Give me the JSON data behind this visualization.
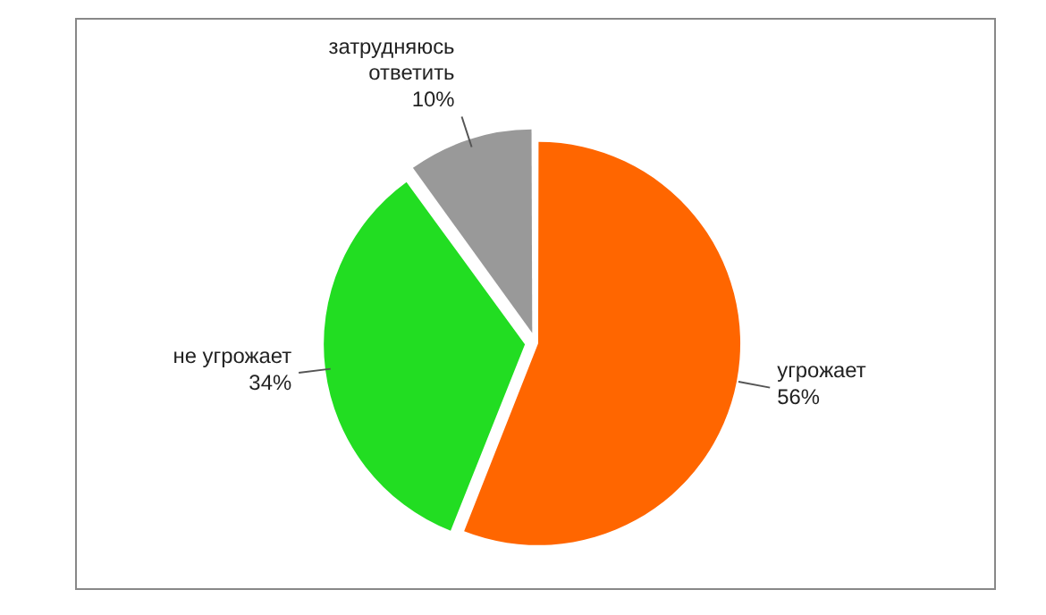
{
  "chart_data": {
    "type": "pie",
    "categories": [
      "угрожает",
      "не угрожает",
      "затрудняюсь ответить"
    ],
    "values": [
      56,
      34,
      10
    ],
    "colors": [
      "#ff6600",
      "#22dd22",
      "#999999"
    ],
    "value_labels": [
      "56%",
      "34%",
      "10%"
    ],
    "legend": false
  }
}
